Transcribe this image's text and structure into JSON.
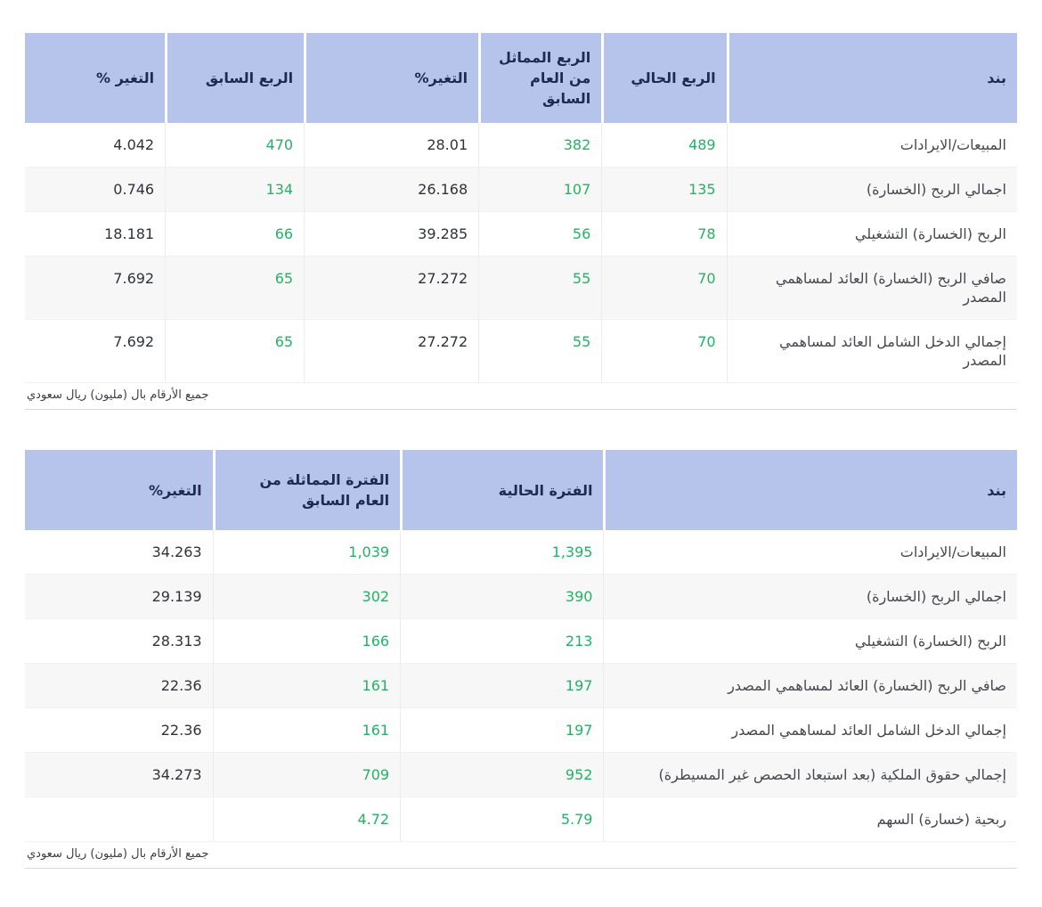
{
  "colors": {
    "header_bg": "#b6c4ec",
    "header_text": "#1c2c51",
    "positive": "#25b163",
    "neutral_text": "#2f3337",
    "label_text": "#45484d",
    "row_alt_bg": "#f7f7f8",
    "divider": "#ececec",
    "footnote_border": "#d9d9d9",
    "page_bg": "#ffffff"
  },
  "quarterly_table": {
    "columns": [
      {
        "key": "item",
        "label": "بند",
        "style": "label"
      },
      {
        "key": "current-quarter",
        "label": "الربع الحالي",
        "style": "green"
      },
      {
        "key": "same-quarter-previous-year",
        "label": "الربع المماثل من العام السابق",
        "style": "green"
      },
      {
        "key": "change-vs-same-quarter",
        "label": "التغير%",
        "style": "dark"
      },
      {
        "key": "previous-quarter",
        "label": "الربع السابق",
        "style": "green"
      },
      {
        "key": "change-vs-previous-quarter",
        "label": "التغير %",
        "style": "dark"
      }
    ],
    "rows": [
      [
        "المبيعات/الايرادات",
        "489",
        "382",
        "28.01",
        "470",
        "4.042"
      ],
      [
        "اجمالي الربح (الخسارة)",
        "135",
        "107",
        "26.168",
        "134",
        "0.746"
      ],
      [
        "الربح (الخسارة) التشغيلي",
        "78",
        "56",
        "39.285",
        "66",
        "18.181"
      ],
      [
        "صافي الربح (الخسارة) العائد لمساهمي المصدر",
        "70",
        "55",
        "27.272",
        "65",
        "7.692"
      ],
      [
        "إجمالي الدخل الشامل العائد لمساهمي المصدر",
        "70",
        "55",
        "27.272",
        "65",
        "7.692"
      ]
    ],
    "footnote": "جميع الأرقام بال (مليون) ريال سعودي"
  },
  "period_table": {
    "columns": [
      {
        "key": "item",
        "label": "بند",
        "style": "label"
      },
      {
        "key": "current-period",
        "label": "الفترة الحالية",
        "style": "green"
      },
      {
        "key": "same-period-previous-year",
        "label": "الفترة المماثلة من العام السابق",
        "style": "green"
      },
      {
        "key": "change",
        "label": "التغير%",
        "style": "dark"
      }
    ],
    "rows": [
      [
        "المبيعات/الايرادات",
        "1,395",
        "1,039",
        "34.263"
      ],
      [
        "اجمالي الربح (الخسارة)",
        "390",
        "302",
        "29.139"
      ],
      [
        "الربح (الخسارة) التشغيلي",
        "213",
        "166",
        "28.313"
      ],
      [
        "صافي الربح (الخسارة) العائد لمساهمي المصدر",
        "197",
        "161",
        "22.36"
      ],
      [
        "إجمالي الدخل الشامل العائد لمساهمي المصدر",
        "197",
        "161",
        "22.36"
      ],
      [
        "إجمالي حقوق الملكية (بعد استبعاد الحصص غير المسيطرة)",
        "952",
        "709",
        "34.273"
      ],
      [
        "ربحية (خسارة) السهم",
        "5.79",
        "4.72",
        ""
      ]
    ],
    "footnote": "جميع الأرقام بال (مليون) ريال سعودي"
  }
}
